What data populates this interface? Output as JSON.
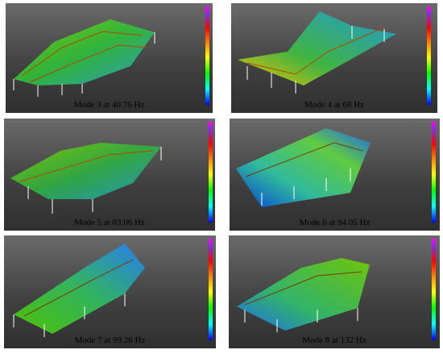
{
  "panels": [
    {
      "caption": "Mode 3 at 40.76 Hz"
    },
    {
      "caption": "Mode 4 at 68 Hz"
    },
    {
      "caption": "Mode 5 at 83.06 Hz"
    },
    {
      "caption": "Mode 6 at 94.05 Hz"
    },
    {
      "caption": "Mode 7 at 99.26 Hz"
    },
    {
      "caption": "Mode 8 at 132 Hz"
    }
  ]
}
